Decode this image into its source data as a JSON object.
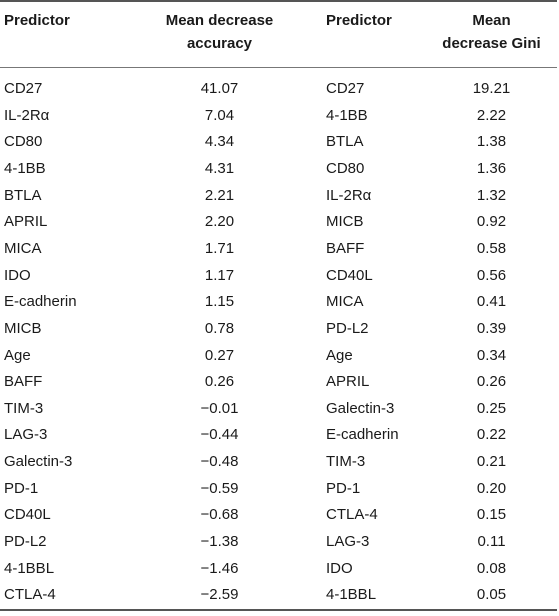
{
  "header": {
    "predictor_1": "Predictor",
    "accuracy_line1": "Mean decrease",
    "accuracy_line2": "accuracy",
    "predictor_2": "Predictor",
    "gini_line1": "Mean",
    "gini_line2": "decrease Gini"
  },
  "rows": [
    {
      "p1": "CD27",
      "acc": "41.07",
      "p2": "CD27",
      "gini": "19.21"
    },
    {
      "p1": "IL-2Rα",
      "acc": "7.04",
      "p2": "4-1BB",
      "gini": "2.22"
    },
    {
      "p1": "CD80",
      "acc": "4.34",
      "p2": "BTLA",
      "gini": "1.38"
    },
    {
      "p1": "4-1BB",
      "acc": "4.31",
      "p2": "CD80",
      "gini": "1.36"
    },
    {
      "p1": "BTLA",
      "acc": "2.21",
      "p2": "IL-2Rα",
      "gini": "1.32"
    },
    {
      "p1": "APRIL",
      "acc": "2.20",
      "p2": "MICB",
      "gini": "0.92"
    },
    {
      "p1": "MICA",
      "acc": "1.71",
      "p2": "BAFF",
      "gini": "0.58"
    },
    {
      "p1": "IDO",
      "acc": "1.17",
      "p2": "CD40L",
      "gini": "0.56"
    },
    {
      "p1": "E-cadherin",
      "acc": "1.15",
      "p2": "MICA",
      "gini": "0.41"
    },
    {
      "p1": "MICB",
      "acc": "0.78",
      "p2": "PD-L2",
      "gini": "0.39"
    },
    {
      "p1": "Age",
      "acc": "0.27",
      "p2": "Age",
      "gini": "0.34"
    },
    {
      "p1": "BAFF",
      "acc": "0.26",
      "p2": "APRIL",
      "gini": "0.26"
    },
    {
      "p1": "TIM-3",
      "acc": "−0.01",
      "p2": "Galectin-3",
      "gini": "0.25"
    },
    {
      "p1": "LAG-3",
      "acc": "−0.44",
      "p2": "E-cadherin",
      "gini": "0.22"
    },
    {
      "p1": "Galectin-3",
      "acc": "−0.48",
      "p2": "TIM-3",
      "gini": "0.21"
    },
    {
      "p1": "PD-1",
      "acc": "−0.59",
      "p2": "PD-1",
      "gini": "0.20"
    },
    {
      "p1": "CD40L",
      "acc": "−0.68",
      "p2": "CTLA-4",
      "gini": "0.15"
    },
    {
      "p1": "PD-L2",
      "acc": "−1.38",
      "p2": "LAG-3",
      "gini": "0.11"
    },
    {
      "p1": "4-1BBL",
      "acc": "−1.46",
      "p2": "IDO",
      "gini": "0.08"
    },
    {
      "p1": "CTLA-4",
      "acc": "−2.59",
      "p2": "4-1BBL",
      "gini": "0.05"
    }
  ]
}
